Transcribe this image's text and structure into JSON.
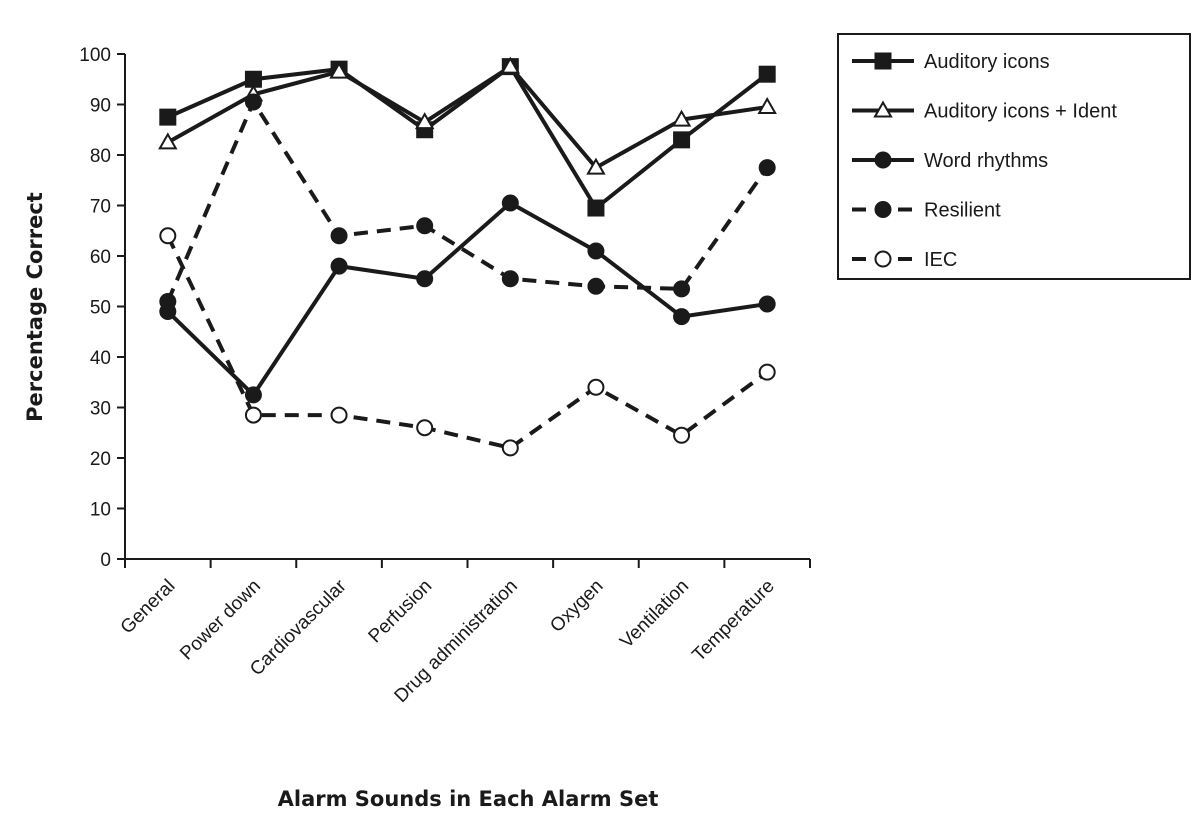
{
  "chart_data": {
    "type": "line",
    "title": "",
    "xlabel": "Alarm Sounds in Each Alarm Set",
    "ylabel": "Percentage Correct",
    "ylim": [
      0,
      100
    ],
    "yticks": [
      0,
      10,
      20,
      30,
      40,
      50,
      60,
      70,
      80,
      90,
      100
    ],
    "grid": false,
    "legend_position": "right",
    "categories": [
      "General",
      "Power down",
      "Cardiovascular",
      "Perfusion",
      "Drug administration",
      "Oxygen",
      "Ventilation",
      "Temperature"
    ],
    "series": [
      {
        "name": "Auditory icons",
        "values": [
          87.5,
          95,
          97,
          85,
          97.5,
          69.5,
          83,
          96
        ],
        "marker": "square-filled",
        "line": "solid",
        "color": "#1a1a1a"
      },
      {
        "name": "Auditory icons + Ident",
        "values": [
          82.5,
          92,
          96.5,
          86.5,
          97.5,
          77.5,
          87,
          89.5
        ],
        "marker": "triangle-open",
        "line": "solid",
        "color": "#1a1a1a"
      },
      {
        "name": "Word rhythms",
        "values": [
          49,
          32.5,
          58,
          55.5,
          70.5,
          61,
          48,
          50.5
        ],
        "marker": "circle-filled",
        "line": "solid",
        "color": "#1a1a1a"
      },
      {
        "name": "Resilient",
        "values": [
          51,
          90.5,
          64,
          66,
          55.5,
          54,
          53.5,
          77.5
        ],
        "marker": "circle-filled",
        "line": "dashed",
        "color": "#1a1a1a"
      },
      {
        "name": "IEC",
        "values": [
          64,
          28.5,
          28.5,
          26,
          22,
          34,
          24.5,
          37
        ],
        "marker": "circle-open",
        "line": "dashed",
        "color": "#1a1a1a"
      }
    ]
  }
}
